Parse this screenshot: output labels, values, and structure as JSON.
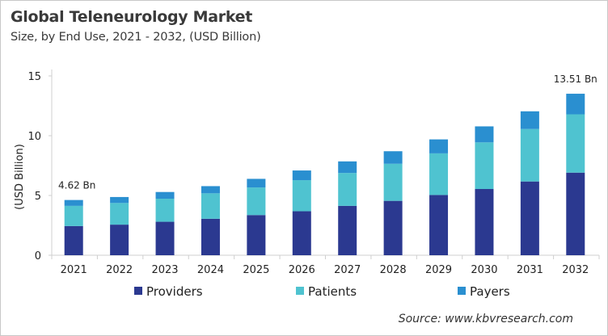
{
  "chart_data": {
    "type": "bar",
    "stacked": true,
    "title": "Global Teleneurology Market",
    "subtitle": "Size, by End Use, 2021 - 2032, (USD Billion)",
    "xlabel": "",
    "ylabel": "(USD Billion)",
    "ylim": [
      0,
      15
    ],
    "yticks": [
      0,
      5,
      10,
      15
    ],
    "grid": false,
    "legend_position": "bottom",
    "categories": [
      "2021",
      "2022",
      "2023",
      "2024",
      "2025",
      "2026",
      "2027",
      "2028",
      "2029",
      "2030",
      "2031",
      "2032"
    ],
    "series": [
      {
        "name": "Providers",
        "color": "#2b3990",
        "values": [
          2.44,
          2.56,
          2.8,
          3.05,
          3.36,
          3.68,
          4.13,
          4.55,
          5.04,
          5.54,
          6.17,
          6.91
        ]
      },
      {
        "name": "Patients",
        "color": "#4fc3d0",
        "values": [
          1.69,
          1.81,
          1.93,
          2.13,
          2.31,
          2.6,
          2.75,
          3.1,
          3.48,
          3.9,
          4.39,
          4.88
        ]
      },
      {
        "name": "Payers",
        "color": "#2a8fd0",
        "values": [
          0.49,
          0.5,
          0.56,
          0.6,
          0.72,
          0.81,
          0.97,
          1.05,
          1.17,
          1.34,
          1.48,
          1.72
        ]
      }
    ],
    "annotations": [
      {
        "category": "2021",
        "text": "4.62 Bn"
      },
      {
        "category": "2032",
        "text": "13.51 Bn"
      }
    ],
    "source": "Source: www.kbvresearch.com"
  }
}
